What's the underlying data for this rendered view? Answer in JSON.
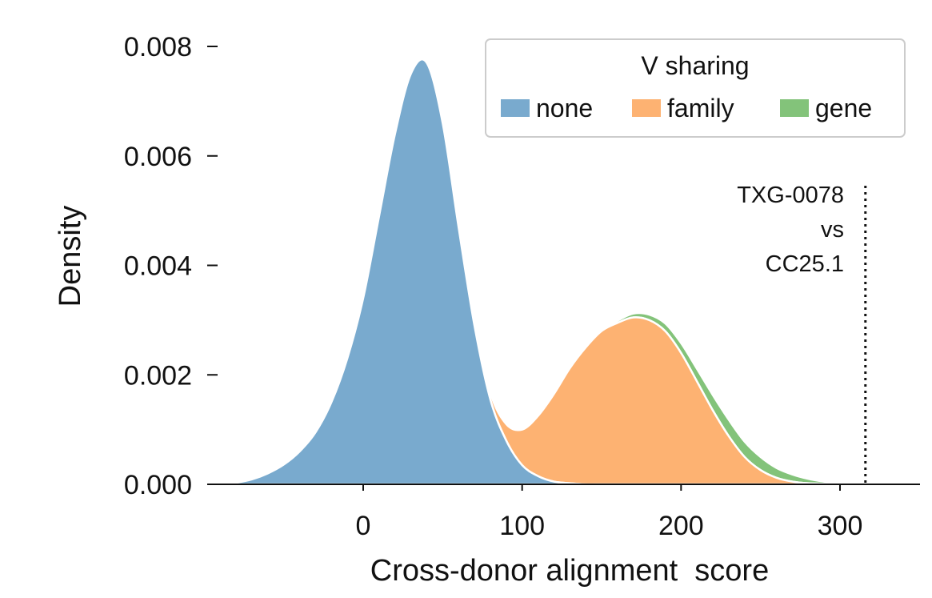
{
  "chart_data": {
    "type": "area",
    "stacked": true,
    "title": "",
    "xlabel": "Cross-donor alignment  score",
    "ylabel": "Density",
    "xlim": [
      -90,
      350
    ],
    "ylim": [
      0,
      0.008
    ],
    "x_ticks": [
      0,
      100,
      200,
      300
    ],
    "x_tick_labels": [
      "0",
      "100",
      "200",
      "300"
    ],
    "y_ticks": [
      0,
      0.002,
      0.004,
      0.006,
      0.008
    ],
    "y_tick_labels": [
      "0.000",
      "0.002",
      "0.004",
      "0.006",
      "0.008"
    ],
    "grid": false,
    "legend": {
      "title": "V sharing",
      "position": "top-right",
      "entries": [
        "none",
        "family",
        "gene"
      ]
    },
    "x": [
      -90,
      -80,
      -70,
      -60,
      -50,
      -40,
      -30,
      -20,
      -10,
      0,
      10,
      20,
      30,
      40,
      50,
      60,
      70,
      80,
      90,
      100,
      110,
      120,
      130,
      140,
      150,
      160,
      170,
      180,
      190,
      200,
      210,
      220,
      230,
      240,
      250,
      260,
      270,
      280,
      290,
      300,
      310
    ],
    "series": [
      {
        "name": "none",
        "color": "#79aace",
        "values": [
          0.0,
          3e-05,
          9e-05,
          0.0002,
          0.00036,
          0.0006,
          0.00095,
          0.0015,
          0.0023,
          0.0034,
          0.0049,
          0.0064,
          0.0075,
          0.0077,
          0.0066,
          0.0047,
          0.0029,
          0.00155,
          0.0008,
          0.00035,
          0.00015,
          5e-05,
          2e-05,
          0.0,
          0.0,
          0.0,
          0.0,
          0.0,
          0.0,
          0.0,
          0.0,
          0.0,
          0.0,
          0.0,
          0.0,
          0.0,
          0.0,
          0.0,
          0.0,
          0.0,
          0.0
        ]
      },
      {
        "name": "family",
        "color": "#fdb272",
        "values": [
          0.0,
          0.0,
          0.0,
          0.0,
          0.0,
          0.0,
          0.0,
          0.0,
          0.0,
          0.0,
          0.0,
          0.0,
          0.0,
          0.0,
          0.0,
          1e-05,
          4e-05,
          0.00012,
          0.0003,
          0.00065,
          0.0011,
          0.0016,
          0.0021,
          0.0025,
          0.0028,
          0.00295,
          0.00305,
          0.003,
          0.0028,
          0.0024,
          0.00188,
          0.00135,
          0.00088,
          0.0005,
          0.00026,
          0.00012,
          5e-05,
          2e-05,
          1e-05,
          0.0,
          0.0
        ]
      },
      {
        "name": "gene",
        "color": "#83c37a",
        "values": [
          0.0,
          0.0,
          0.0,
          0.0,
          0.0,
          0.0,
          0.0,
          0.0,
          0.0,
          0.0,
          0.0,
          0.0,
          0.0,
          0.0,
          0.0,
          0.0,
          0.0,
          0.0,
          0.0,
          0.0,
          0.0,
          0.0,
          5e-06,
          1e-05,
          2e-05,
          4e-05,
          7e-05,
          0.0001,
          0.00014,
          0.00018,
          0.00023,
          0.00028,
          0.0003,
          0.00028,
          0.00024,
          0.00018,
          0.00013,
          8e-05,
          4e-05,
          2e-05,
          0.0
        ]
      }
    ],
    "reference_line": {
      "x": 316,
      "style": "dotted",
      "label_lines": [
        "TXG-0078",
        "vs",
        "CC25.1"
      ]
    }
  }
}
